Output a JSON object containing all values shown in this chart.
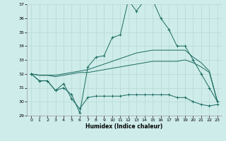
{
  "xlabel": "Humidex (Indice chaleur)",
  "bg_color": "#ceecea",
  "grid_color": "#b8d8d4",
  "line_color": "#1a6b60",
  "xmin": -0.5,
  "xmax": 23.5,
  "ymin": 29,
  "ymax": 37,
  "yticks": [
    29,
    30,
    31,
    32,
    33,
    34,
    35,
    36,
    37
  ],
  "xticks": [
    0,
    1,
    2,
    3,
    4,
    5,
    6,
    7,
    8,
    9,
    10,
    11,
    12,
    13,
    14,
    15,
    16,
    17,
    18,
    19,
    20,
    21,
    22,
    23
  ],
  "line1_x": [
    0,
    1,
    2,
    3,
    4,
    5,
    6,
    7,
    8,
    9,
    10,
    11,
    12,
    13,
    14,
    15,
    16,
    17,
    18,
    19,
    20,
    21,
    22,
    23
  ],
  "line1_y": [
    32.0,
    31.5,
    31.5,
    30.8,
    31.0,
    30.5,
    29.2,
    32.5,
    33.2,
    33.3,
    34.6,
    34.8,
    37.3,
    36.5,
    37.3,
    37.3,
    36.0,
    35.2,
    34.0,
    34.0,
    33.0,
    32.0,
    31.0,
    30.0
  ],
  "line2_x": [
    0,
    1,
    2,
    3,
    4,
    5,
    6,
    7,
    8,
    9,
    10,
    11,
    12,
    13,
    14,
    15,
    16,
    17,
    18,
    19,
    20,
    21,
    22,
    23
  ],
  "line2_y": [
    32.0,
    31.5,
    31.5,
    30.8,
    31.3,
    30.2,
    29.5,
    30.3,
    30.4,
    30.4,
    30.4,
    30.4,
    30.5,
    30.5,
    30.5,
    30.5,
    30.5,
    30.5,
    30.3,
    30.3,
    30.0,
    29.8,
    29.7,
    29.8
  ],
  "line3_x": [
    0,
    1,
    2,
    3,
    4,
    5,
    6,
    7,
    8,
    9,
    10,
    11,
    12,
    13,
    14,
    15,
    16,
    17,
    18,
    19,
    20,
    21,
    22,
    23
  ],
  "line3_y": [
    32.0,
    31.9,
    31.9,
    31.9,
    32.0,
    32.1,
    32.2,
    32.3,
    32.5,
    32.7,
    32.9,
    33.1,
    33.3,
    33.5,
    33.6,
    33.7,
    33.7,
    33.7,
    33.7,
    33.7,
    33.2,
    32.8,
    32.2,
    30.0
  ],
  "line4_x": [
    0,
    1,
    2,
    3,
    4,
    5,
    6,
    7,
    8,
    9,
    10,
    11,
    12,
    13,
    14,
    15,
    16,
    17,
    18,
    19,
    20,
    21,
    22,
    23
  ],
  "line4_y": [
    32.0,
    31.9,
    31.9,
    31.8,
    31.9,
    32.0,
    32.1,
    32.1,
    32.2,
    32.3,
    32.4,
    32.5,
    32.6,
    32.7,
    32.8,
    32.9,
    32.9,
    32.9,
    32.9,
    33.0,
    32.8,
    32.5,
    32.1,
    30.0
  ]
}
